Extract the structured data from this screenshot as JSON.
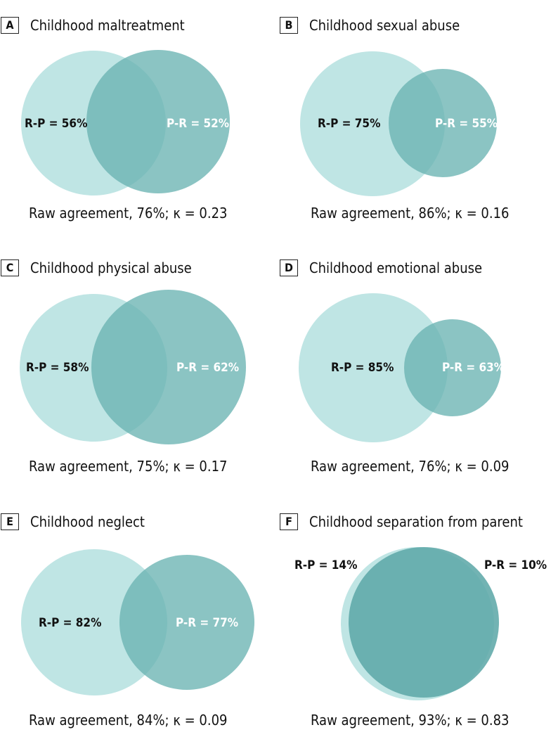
{
  "colors": {
    "circle_rp": "#bfe5e4",
    "circle_pr": "#6ab3b2",
    "overlap_tone": "#5fa9a8"
  },
  "chart_data": [
    {
      "type": "venn",
      "letter": "A",
      "title": "Childhood maltreatment",
      "sets": [
        {
          "label": "R-P = 56%",
          "value": 56
        },
        {
          "label": "P-R = 52%",
          "value": 52
        }
      ],
      "caption": "Raw agreement, 76%; κ = 0.23",
      "raw_agreement": 76,
      "kappa": 0.23
    },
    {
      "type": "venn",
      "letter": "B",
      "title": "Childhood sexual abuse",
      "sets": [
        {
          "label": "R-P = 75%",
          "value": 75
        },
        {
          "label": "P-R = 55%",
          "value": 55
        }
      ],
      "caption": "Raw agreement, 86%; κ = 0.16",
      "raw_agreement": 86,
      "kappa": 0.16
    },
    {
      "type": "venn",
      "letter": "C",
      "title": "Childhood physical abuse",
      "sets": [
        {
          "label": "R-P = 58%",
          "value": 58
        },
        {
          "label": "P-R = 62%",
          "value": 62
        }
      ],
      "caption": "Raw agreement, 75%; κ = 0.17",
      "raw_agreement": 75,
      "kappa": 0.17
    },
    {
      "type": "venn",
      "letter": "D",
      "title": "Childhood emotional abuse",
      "sets": [
        {
          "label": "R-P = 85%",
          "value": 85
        },
        {
          "label": "P-R = 63%",
          "value": 63
        }
      ],
      "caption": "Raw agreement, 76%; κ = 0.09",
      "raw_agreement": 76,
      "kappa": 0.09
    },
    {
      "type": "venn",
      "letter": "E",
      "title": "Childhood neglect",
      "sets": [
        {
          "label": "R-P = 82%",
          "value": 82
        },
        {
          "label": "P-R = 77%",
          "value": 77
        }
      ],
      "caption": "Raw agreement, 84%; κ = 0.09",
      "raw_agreement": 84,
      "kappa": 0.09
    },
    {
      "type": "venn",
      "letter": "F",
      "title": "Childhood separation from parent",
      "sets": [
        {
          "label": "R-P = 14%",
          "value": 14
        },
        {
          "label": "P-R = 10%",
          "value": 10
        }
      ],
      "caption": "Raw agreement, 93%; κ = 0.83",
      "raw_agreement": 93,
      "kappa": 0.83
    }
  ]
}
